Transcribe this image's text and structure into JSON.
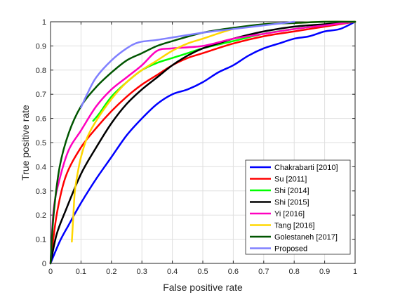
{
  "chart_data": {
    "type": "line",
    "title": "",
    "xlabel": "False positive rate",
    "ylabel": "True positive rate",
    "xlim": [
      0,
      1
    ],
    "ylim": [
      0,
      1
    ],
    "xticks": [
      "0",
      "0.1",
      "0.2",
      "0.3",
      "0.4",
      "0.5",
      "0.6",
      "0.7",
      "0.8",
      "0.9",
      "1"
    ],
    "yticks": [
      "0",
      "0.1",
      "0.2",
      "0.3",
      "0.4",
      "0.5",
      "0.6",
      "0.7",
      "0.8",
      "0.9",
      "1"
    ],
    "grid": true,
    "legend_position": "bottom-right",
    "series": [
      {
        "name": "Chakrabarti [2010]",
        "color": "#0000ff",
        "x": [
          0,
          0.03,
          0.06,
          0.1,
          0.15,
          0.2,
          0.25,
          0.3,
          0.35,
          0.4,
          0.45,
          0.5,
          0.55,
          0.6,
          0.65,
          0.7,
          0.75,
          0.8,
          0.85,
          0.9,
          0.95,
          1.0
        ],
        "y": [
          0,
          0.09,
          0.16,
          0.25,
          0.35,
          0.44,
          0.53,
          0.6,
          0.66,
          0.7,
          0.72,
          0.75,
          0.79,
          0.82,
          0.86,
          0.89,
          0.91,
          0.93,
          0.94,
          0.96,
          0.97,
          1.0
        ]
      },
      {
        "name": "Su [2011]",
        "color": "#ff0000",
        "x": [
          0,
          0.02,
          0.05,
          0.1,
          0.15,
          0.2,
          0.25,
          0.3,
          0.35,
          0.4,
          0.45,
          0.5,
          0.6,
          0.7,
          0.8,
          0.9,
          1.0
        ],
        "y": [
          0,
          0.2,
          0.36,
          0.48,
          0.56,
          0.63,
          0.69,
          0.74,
          0.78,
          0.82,
          0.85,
          0.87,
          0.91,
          0.94,
          0.96,
          0.98,
          1.0
        ]
      },
      {
        "name": "Shi [2014]",
        "color": "#00ff00",
        "x": [
          0.14,
          0.16,
          0.2,
          0.25,
          0.3,
          0.35,
          0.4,
          0.45,
          0.5,
          0.6,
          0.7,
          0.8,
          0.9,
          1.0
        ],
        "y": [
          0.59,
          0.62,
          0.69,
          0.75,
          0.8,
          0.83,
          0.85,
          0.87,
          0.89,
          0.92,
          0.95,
          0.97,
          0.985,
          1.0
        ]
      },
      {
        "name": "Shi [2015]",
        "color": "#000000",
        "x": [
          0,
          0.02,
          0.05,
          0.1,
          0.15,
          0.2,
          0.25,
          0.3,
          0.35,
          0.4,
          0.45,
          0.5,
          0.55,
          0.6,
          0.7,
          0.8,
          0.9,
          1.0
        ],
        "y": [
          0,
          0.12,
          0.22,
          0.37,
          0.48,
          0.58,
          0.66,
          0.72,
          0.77,
          0.82,
          0.86,
          0.89,
          0.91,
          0.93,
          0.96,
          0.98,
          0.99,
          1.0
        ]
      },
      {
        "name": "Yi [2016]",
        "color": "#ff00bf",
        "x": [
          0,
          0.01,
          0.03,
          0.06,
          0.1,
          0.15,
          0.2,
          0.25,
          0.3,
          0.35,
          0.4,
          0.5,
          0.6,
          0.7,
          0.8,
          0.9,
          1.0
        ],
        "y": [
          0,
          0.22,
          0.35,
          0.47,
          0.55,
          0.65,
          0.72,
          0.77,
          0.82,
          0.88,
          0.89,
          0.9,
          0.93,
          0.95,
          0.97,
          0.985,
          1.0
        ]
      },
      {
        "name": "Tang [2016]",
        "color": "#ffd700",
        "x": [
          0.07,
          0.075,
          0.08,
          0.09,
          0.1,
          0.12,
          0.15,
          0.2,
          0.25,
          0.3,
          0.35,
          0.4,
          0.45,
          0.5,
          0.6,
          0.7,
          0.8,
          0.9,
          1.0
        ],
        "y": [
          0.09,
          0.2,
          0.3,
          0.38,
          0.44,
          0.52,
          0.59,
          0.68,
          0.75,
          0.8,
          0.84,
          0.88,
          0.91,
          0.93,
          0.97,
          0.99,
          0.995,
          1.0,
          1.0
        ]
      },
      {
        "name": "Golestaneh [2017]",
        "color": "#005500",
        "x": [
          0,
          0.01,
          0.03,
          0.06,
          0.1,
          0.15,
          0.2,
          0.25,
          0.3,
          0.35,
          0.4,
          0.5,
          0.6,
          0.7,
          0.8,
          0.9,
          1.0
        ],
        "y": [
          0,
          0.2,
          0.4,
          0.54,
          0.65,
          0.73,
          0.79,
          0.84,
          0.87,
          0.9,
          0.92,
          0.955,
          0.975,
          0.99,
          0.995,
          1.0,
          1.0
        ]
      },
      {
        "name": "Proposed",
        "color": "#8080ff",
        "x": [
          0.1,
          0.12,
          0.15,
          0.2,
          0.25,
          0.29,
          0.35,
          0.4,
          0.5,
          0.6,
          0.7,
          0.8
        ],
        "y": [
          0.645,
          0.7,
          0.77,
          0.84,
          0.89,
          0.915,
          0.925,
          0.935,
          0.955,
          0.97,
          0.985,
          1.0
        ]
      }
    ]
  }
}
